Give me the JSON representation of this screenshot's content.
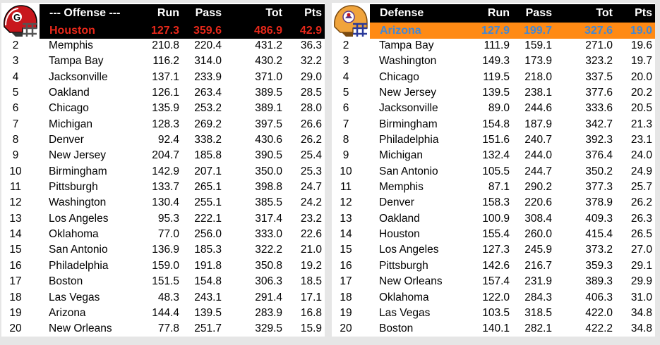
{
  "colors": {
    "header_bg": "#000000",
    "offense_leader_bg": "#000000",
    "offense_leader_text": "#e8281a",
    "defense_leader_bg": "#ff8a14",
    "defense_leader_text": "#3f88d9"
  },
  "offense": {
    "logo": "houston-helmet-icon",
    "header": {
      "title": "--- Offense ---",
      "run": "Run",
      "pass": "Pass",
      "tot": "Tot",
      "pts": "Pts"
    },
    "leader": {
      "team": "Houston",
      "run": "127.3",
      "pass": "359.6",
      "tot": "486.9",
      "pts": "42.9"
    },
    "rows": [
      {
        "rank": "2",
        "team": "Memphis",
        "run": "210.8",
        "pass": "220.4",
        "tot": "431.2",
        "pts": "36.3"
      },
      {
        "rank": "3",
        "team": "Tampa Bay",
        "run": "116.2",
        "pass": "314.0",
        "tot": "430.2",
        "pts": "32.2"
      },
      {
        "rank": "4",
        "team": "Jacksonville",
        "run": "137.1",
        "pass": "233.9",
        "tot": "371.0",
        "pts": "29.0"
      },
      {
        "rank": "5",
        "team": "Oakland",
        "run": "126.1",
        "pass": "263.4",
        "tot": "389.5",
        "pts": "28.5"
      },
      {
        "rank": "6",
        "team": "Chicago",
        "run": "135.9",
        "pass": "253.2",
        "tot": "389.1",
        "pts": "28.0"
      },
      {
        "rank": "7",
        "team": "Michigan",
        "run": "128.3",
        "pass": "269.2",
        "tot": "397.5",
        "pts": "26.6"
      },
      {
        "rank": "8",
        "team": "Denver",
        "run": "92.4",
        "pass": "338.2",
        "tot": "430.6",
        "pts": "26.2"
      },
      {
        "rank": "9",
        "team": "New Jersey",
        "run": "204.7",
        "pass": "185.8",
        "tot": "390.5",
        "pts": "25.4"
      },
      {
        "rank": "10",
        "team": "Birmingham",
        "run": "142.9",
        "pass": "207.1",
        "tot": "350.0",
        "pts": "25.3"
      },
      {
        "rank": "11",
        "team": "Pittsburgh",
        "run": "133.7",
        "pass": "265.1",
        "tot": "398.8",
        "pts": "24.7"
      },
      {
        "rank": "12",
        "team": "Washington",
        "run": "130.4",
        "pass": "255.1",
        "tot": "385.5",
        "pts": "24.2"
      },
      {
        "rank": "13",
        "team": "Los Angeles",
        "run": "95.3",
        "pass": "222.1",
        "tot": "317.4",
        "pts": "23.2"
      },
      {
        "rank": "14",
        "team": "Oklahoma",
        "run": "77.0",
        "pass": "256.0",
        "tot": "333.0",
        "pts": "22.6"
      },
      {
        "rank": "15",
        "team": "San Antonio",
        "run": "136.9",
        "pass": "185.3",
        "tot": "322.2",
        "pts": "21.0"
      },
      {
        "rank": "16",
        "team": "Philadelphia",
        "run": "159.0",
        "pass": "191.8",
        "tot": "350.8",
        "pts": "19.2"
      },
      {
        "rank": "17",
        "team": "Boston",
        "run": "151.5",
        "pass": "154.8",
        "tot": "306.3",
        "pts": "18.5"
      },
      {
        "rank": "18",
        "team": "Las Vegas",
        "run": "48.3",
        "pass": "243.1",
        "tot": "291.4",
        "pts": "17.1"
      },
      {
        "rank": "19",
        "team": "Arizona",
        "run": "144.4",
        "pass": "139.5",
        "tot": "283.9",
        "pts": "16.8"
      },
      {
        "rank": "20",
        "team": "New Orleans",
        "run": "77.8",
        "pass": "251.7",
        "tot": "329.5",
        "pts": "15.9"
      }
    ]
  },
  "defense": {
    "logo": "arizona-helmet-icon",
    "header": {
      "title": "Defense",
      "run": "Run",
      "pass": "Pass",
      "tot": "Tot",
      "pts": "Pts"
    },
    "leader": {
      "team": "Arizona",
      "run": "127.9",
      "pass": "199.7",
      "tot": "327.6",
      "pts": "19.0"
    },
    "rows": [
      {
        "rank": "2",
        "team": "Tampa Bay",
        "run": "111.9",
        "pass": "159.1",
        "tot": "271.0",
        "pts": "19.6"
      },
      {
        "rank": "3",
        "team": "Washington",
        "run": "149.3",
        "pass": "173.9",
        "tot": "323.2",
        "pts": "19.7"
      },
      {
        "rank": "4",
        "team": "Chicago",
        "run": "119.5",
        "pass": "218.0",
        "tot": "337.5",
        "pts": "20.0"
      },
      {
        "rank": "5",
        "team": "New Jersey",
        "run": "139.5",
        "pass": "238.1",
        "tot": "377.6",
        "pts": "20.2"
      },
      {
        "rank": "6",
        "team": "Jacksonville",
        "run": "89.0",
        "pass": "244.6",
        "tot": "333.6",
        "pts": "20.5"
      },
      {
        "rank": "7",
        "team": "Birmingham",
        "run": "154.8",
        "pass": "187.9",
        "tot": "342.7",
        "pts": "21.3"
      },
      {
        "rank": "8",
        "team": "Philadelphia",
        "run": "151.6",
        "pass": "240.7",
        "tot": "392.3",
        "pts": "23.1"
      },
      {
        "rank": "9",
        "team": "Michigan",
        "run": "132.4",
        "pass": "244.0",
        "tot": "376.4",
        "pts": "24.0"
      },
      {
        "rank": "10",
        "team": "San Antonio",
        "run": "105.5",
        "pass": "244.7",
        "tot": "350.2",
        "pts": "24.9"
      },
      {
        "rank": "11",
        "team": "Memphis",
        "run": "87.1",
        "pass": "290.2",
        "tot": "377.3",
        "pts": "25.7"
      },
      {
        "rank": "12",
        "team": "Denver",
        "run": "158.3",
        "pass": "220.6",
        "tot": "378.9",
        "pts": "26.2"
      },
      {
        "rank": "13",
        "team": "Oakland",
        "run": "100.9",
        "pass": "308.4",
        "tot": "409.3",
        "pts": "26.3"
      },
      {
        "rank": "14",
        "team": "Houston",
        "run": "155.4",
        "pass": "260.0",
        "tot": "415.4",
        "pts": "26.5"
      },
      {
        "rank": "15",
        "team": "Los Angeles",
        "run": "127.3",
        "pass": "245.9",
        "tot": "373.2",
        "pts": "27.0"
      },
      {
        "rank": "16",
        "team": "Pittsburgh",
        "run": "142.6",
        "pass": "216.7",
        "tot": "359.3",
        "pts": "29.1"
      },
      {
        "rank": "17",
        "team": "New Orleans",
        "run": "157.4",
        "pass": "231.9",
        "tot": "389.3",
        "pts": "29.9"
      },
      {
        "rank": "18",
        "team": "Oklahoma",
        "run": "122.0",
        "pass": "284.3",
        "tot": "406.3",
        "pts": "31.0"
      },
      {
        "rank": "19",
        "team": "Las Vegas",
        "run": "103.5",
        "pass": "318.5",
        "tot": "422.0",
        "pts": "34.8"
      },
      {
        "rank": "20",
        "team": "Boston",
        "run": "140.1",
        "pass": "282.1",
        "tot": "422.2",
        "pts": "34.8"
      }
    ]
  }
}
